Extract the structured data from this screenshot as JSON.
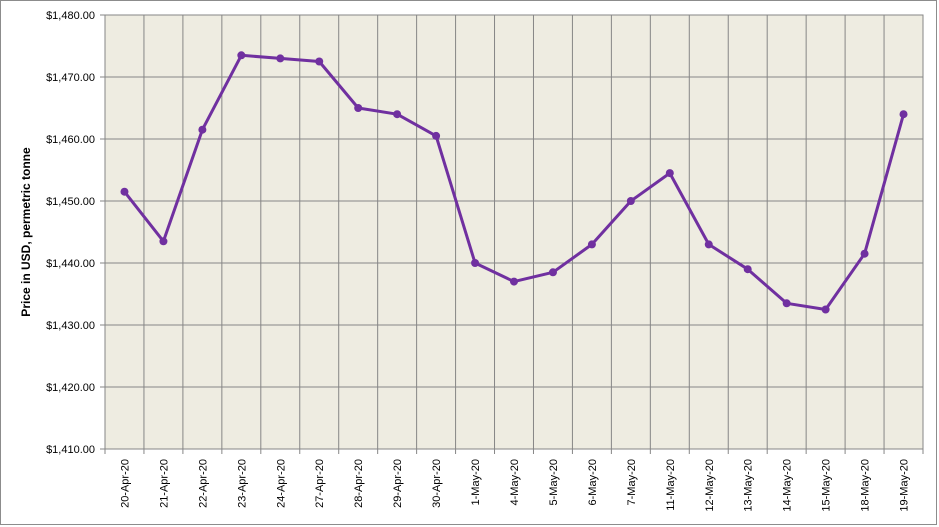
{
  "chart_data": {
    "type": "line",
    "title": "",
    "xlabel": "",
    "ylabel": "Price in USD, permetric tonne",
    "categories": [
      "20-Apr-20",
      "21-Apr-20",
      "22-Apr-20",
      "23-Apr-20",
      "24-Apr-20",
      "27-Apr-20",
      "28-Apr-20",
      "29-Apr-20",
      "30-Apr-20",
      "1-May-20",
      "4-May-20",
      "5-May-20",
      "6-May-20",
      "7-May-20",
      "11-May-20",
      "12-May-20",
      "13-May-20",
      "14-May-20",
      "15-May-20",
      "18-May-20",
      "19-May-20"
    ],
    "series": [
      {
        "name": "",
        "color": "#7030a0",
        "values": [
          1451.5,
          1443.5,
          1461.5,
          1473.5,
          1473.0,
          1472.5,
          1465.0,
          1464.0,
          1460.5,
          1440.0,
          1437.0,
          1438.5,
          1443.0,
          1450.0,
          1454.5,
          1443.0,
          1439.0,
          1433.5,
          1432.5,
          1441.5,
          1464.0
        ]
      }
    ],
    "ylim": [
      1410,
      1480
    ],
    "yticks": [
      1410,
      1420,
      1430,
      1440,
      1450,
      1460,
      1470,
      1480
    ],
    "ytick_labels": [
      "$1,410.00",
      "$1,420.00",
      "$1,430.00",
      "$1,440.00",
      "$1,450.00",
      "$1,460.00",
      "$1,470.00",
      "$1,480.00"
    ],
    "grid": true,
    "plot_background": "#eeece1",
    "legend": "none"
  }
}
